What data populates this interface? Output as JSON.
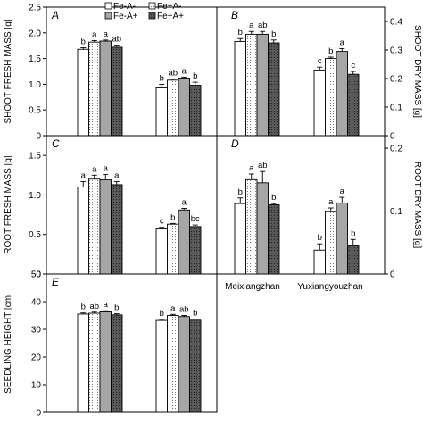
{
  "legend": {
    "items": [
      {
        "label": "Fe-A-",
        "fill": "white"
      },
      {
        "label": "Fe+A-",
        "fill": "dots"
      },
      {
        "label": "Fe-A+",
        "fill": "gray"
      },
      {
        "label": "Fe+A+",
        "fill": "dark-dots"
      }
    ]
  },
  "chart_data": [
    {
      "type": "bar",
      "panel": "A",
      "ylabel": "SHOOT FRESH MASS [g]",
      "ylim": [
        0,
        2.5
      ],
      "yticks": [
        "0",
        "0.5",
        "1.0",
        "1.5",
        "2.0",
        "2.5"
      ],
      "categories": [
        "Meixiangzhan",
        "Yuxiangyouzhan"
      ],
      "series": [
        {
          "name": "Fe-A-",
          "values": [
            1.68,
            0.93
          ],
          "errors": [
            0.03,
            0.07
          ],
          "letters": [
            "b",
            "b"
          ]
        },
        {
          "name": "Fe+A-",
          "values": [
            1.82,
            1.08
          ],
          "errors": [
            0.03,
            0.02
          ],
          "letters": [
            "a",
            "ab"
          ]
        },
        {
          "name": "Fe-A+",
          "values": [
            1.84,
            1.12
          ],
          "errors": [
            0.02,
            0.02
          ],
          "letters": [
            "a",
            "a"
          ]
        },
        {
          "name": "Fe+A+",
          "values": [
            1.72,
            0.98
          ],
          "errors": [
            0.04,
            0.06
          ],
          "letters": [
            "ab",
            "b"
          ]
        }
      ]
    },
    {
      "type": "bar",
      "panel": "B",
      "ylabel": "SHOOT DRY MASS [g]",
      "ylim": [
        0,
        0.45
      ],
      "yticks": [
        "0",
        "0.1",
        "0.2",
        "0.3",
        "0.4"
      ],
      "categories": [
        "Meixiangzhan",
        "Yuxiangyouzhan"
      ],
      "series": [
        {
          "name": "Fe-A-",
          "values": [
            0.33,
            0.23
          ],
          "errors": [
            0.01,
            0.01
          ],
          "letters": [
            "b",
            "c"
          ]
        },
        {
          "name": "Fe+A-",
          "values": [
            0.355,
            0.27
          ],
          "errors": [
            0.01,
            0.005
          ],
          "letters": [
            "a",
            "b"
          ]
        },
        {
          "name": "Fe-A+",
          "values": [
            0.355,
            0.295
          ],
          "errors": [
            0.01,
            0.01
          ],
          "letters": [
            "ab",
            "a"
          ]
        },
        {
          "name": "Fe+A+",
          "values": [
            0.325,
            0.215
          ],
          "errors": [
            0.01,
            0.01
          ],
          "letters": [
            "b",
            "c"
          ]
        }
      ]
    },
    {
      "type": "bar",
      "panel": "C",
      "ylabel": "ROOT FRESH MASS [g]",
      "ylim": [
        0,
        1.75
      ],
      "yticks": [
        "0",
        "0.5",
        "1.0",
        "1.5"
      ],
      "categories": [
        "Meixiangzhan",
        "Yuxiangyouzhan"
      ],
      "series": [
        {
          "name": "Fe-A-",
          "values": [
            1.1,
            0.57
          ],
          "errors": [
            0.07,
            0.02
          ],
          "letters": [
            "a",
            "c"
          ]
        },
        {
          "name": "Fe+A-",
          "values": [
            1.2,
            0.63
          ],
          "errors": [
            0.05,
            0.01
          ],
          "letters": [
            "a",
            "b"
          ]
        },
        {
          "name": "Fe-A+",
          "values": [
            1.19,
            0.81
          ],
          "errors": [
            0.07,
            0.02
          ],
          "letters": [
            "a",
            "a"
          ]
        },
        {
          "name": "Fe+A+",
          "values": [
            1.13,
            0.6
          ],
          "errors": [
            0.04,
            0.02
          ],
          "letters": [
            "a",
            "bc"
          ]
        }
      ]
    },
    {
      "type": "bar",
      "panel": "D",
      "ylabel": "ROOT DRY MASS [g]",
      "ylim": [
        0,
        0.22
      ],
      "yticks": [
        "0",
        "0.1",
        "0.2"
      ],
      "categories": [
        "Meixiangzhan",
        "Yuxiangyouzhan"
      ],
      "series": [
        {
          "name": "Fe-A-",
          "values": [
            0.112,
            0.038
          ],
          "errors": [
            0.009,
            0.01
          ],
          "letters": [
            "b",
            "b"
          ]
        },
        {
          "name": "Fe+A-",
          "values": [
            0.15,
            0.099
          ],
          "errors": [
            0.009,
            0.006
          ],
          "letters": [
            "a",
            "a"
          ]
        },
        {
          "name": "Fe-A+",
          "values": [
            0.145,
            0.113
          ],
          "errors": [
            0.018,
            0.009
          ],
          "letters": [
            "ab",
            "a"
          ]
        },
        {
          "name": "Fe+A+",
          "values": [
            0.11,
            0.045
          ],
          "errors": [
            0.002,
            0.01
          ],
          "letters": [
            "b",
            "b"
          ]
        }
      ]
    },
    {
      "type": "bar",
      "panel": "E",
      "ylabel": "SEEDLING HEIGHT [cm]",
      "ylim": [
        0,
        50
      ],
      "yticks": [
        "0",
        "10",
        "20",
        "30",
        "40",
        "50"
      ],
      "categories": [
        "Meixiangzhan",
        "Yuxiangyouzhan"
      ],
      "series": [
        {
          "name": "Fe-A-",
          "values": [
            35.5,
            33.2
          ],
          "errors": [
            0.4,
            0.4
          ],
          "letters": [
            "b",
            "b"
          ]
        },
        {
          "name": "Fe+A-",
          "values": [
            35.8,
            35.0
          ],
          "errors": [
            0.4,
            0.4
          ],
          "letters": [
            "ab",
            "a"
          ]
        },
        {
          "name": "Fe-A+",
          "values": [
            36.3,
            34.6
          ],
          "errors": [
            0.4,
            0.4
          ],
          "letters": [
            "a",
            "ab"
          ]
        },
        {
          "name": "Fe+A+",
          "values": [
            35.2,
            33.3
          ],
          "errors": [
            0.4,
            0.4
          ],
          "letters": [
            "b",
            "b"
          ]
        }
      ]
    }
  ]
}
